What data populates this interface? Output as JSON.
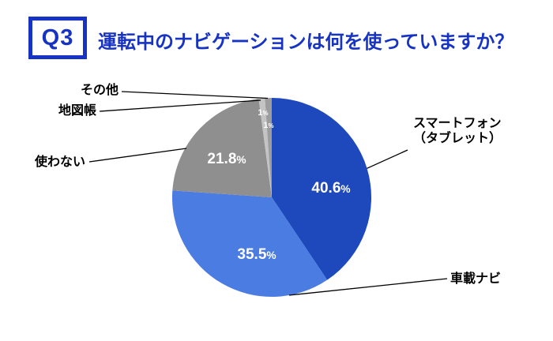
{
  "header": {
    "question_number": "Q3",
    "title": "運転中のナビゲーションは何を使っていますか？"
  },
  "colors": {
    "accent_blue": "#1733c4",
    "slice_smartphone": "#1d49bd",
    "slice_carnav": "#4b7ce2",
    "slice_none": "#8f8f8f",
    "slice_atlas": "#c4c4c4",
    "slice_other": "#9d9d9d",
    "leader_line": "#000000",
    "value_label": "#ffffff",
    "background": "#ffffff"
  },
  "chart_data": {
    "type": "pie",
    "title": "運転中のナビゲーションは何を使っていますか？",
    "start_angle": "12-oclock",
    "direction": "clockwise",
    "legend_position": "outside-labels-with-leader-lines",
    "slices": [
      {
        "label": "スマートフォン（タブレット）",
        "label_lines": [
          "スマートフォン",
          "（タブレット）"
        ],
        "value": 40.6,
        "display": "40.6%",
        "color_key": "slice_smartphone"
      },
      {
        "label": "車載ナビ",
        "label_lines": [
          "車載ナビ"
        ],
        "value": 35.5,
        "display": "35.5%",
        "color_key": "slice_carnav"
      },
      {
        "label": "使わない",
        "label_lines": [
          "使わない"
        ],
        "value": 21.8,
        "display": "21.8%",
        "color_key": "slice_none"
      },
      {
        "label": "地図帳",
        "label_lines": [
          "地図帳"
        ],
        "value": 1.0,
        "display": "1%",
        "color_key": "slice_atlas"
      },
      {
        "label": "その他",
        "label_lines": [
          "その他"
        ],
        "value": 1.1,
        "display": "1%",
        "color_key": "slice_other"
      }
    ]
  }
}
